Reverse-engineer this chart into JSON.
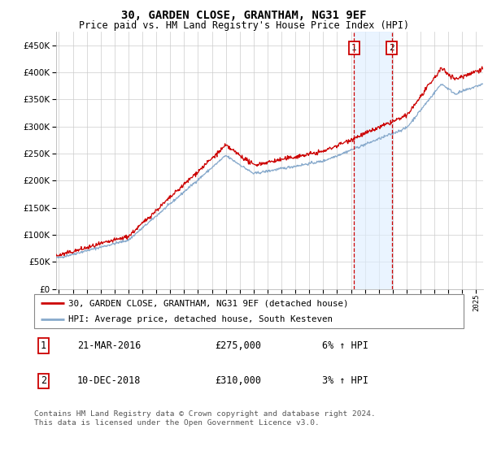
{
  "title": "30, GARDEN CLOSE, GRANTHAM, NG31 9EF",
  "subtitle": "Price paid vs. HM Land Registry's House Price Index (HPI)",
  "ylabel_values": [
    0,
    50000,
    100000,
    150000,
    200000,
    250000,
    300000,
    350000,
    400000,
    450000
  ],
  "ylim": [
    0,
    475000
  ],
  "xlim_start": 1994.8,
  "xlim_end": 2025.5,
  "xtick_years": [
    1995,
    1996,
    1997,
    1998,
    1999,
    2000,
    2001,
    2002,
    2003,
    2004,
    2005,
    2006,
    2007,
    2008,
    2009,
    2010,
    2011,
    2012,
    2013,
    2014,
    2015,
    2016,
    2017,
    2018,
    2019,
    2020,
    2021,
    2022,
    2023,
    2024,
    2025
  ],
  "transaction1": {
    "date": "21-MAR-2016",
    "label": "21-MAR-2016",
    "price_str": "£275,000",
    "hpi_str": "6% ↑ HPI",
    "x": 2016.22
  },
  "transaction2": {
    "date": "10-DEC-2018",
    "label": "10-DEC-2018",
    "price_str": "£310,000",
    "hpi_str": "3% ↑ HPI",
    "x": 2018.94
  },
  "shade_color": "#ddeeff",
  "shade_alpha": 0.6,
  "line1_color": "#cc0000",
  "line2_color": "#88aacc",
  "line1_label": "30, GARDEN CLOSE, GRANTHAM, NG31 9EF (detached house)",
  "line2_label": "HPI: Average price, detached house, South Kesteven",
  "footnote": "Contains HM Land Registry data © Crown copyright and database right 2024.\nThis data is licensed under the Open Government Licence v3.0.",
  "background_color": "#ffffff",
  "grid_color": "#cccccc",
  "marker_box_color": "#cc0000"
}
